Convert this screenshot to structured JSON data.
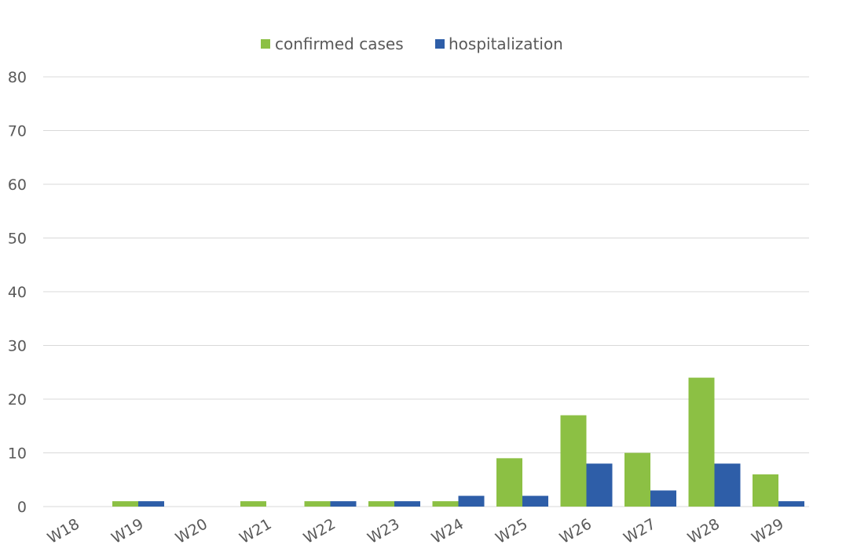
{
  "chart_data": {
    "type": "bar",
    "title": "",
    "xlabel": "",
    "ylabel": "",
    "ylim": [
      0,
      80
    ],
    "yticks": [
      0,
      10,
      20,
      30,
      40,
      50,
      60,
      70,
      80
    ],
    "grid": true,
    "legend_position": "top-center",
    "categories": [
      "W18",
      "W19",
      "W20",
      "W21",
      "W22",
      "W23",
      "W24",
      "W25",
      "W26",
      "W27",
      "W28",
      "W29"
    ],
    "series": [
      {
        "name": "confirmed cases",
        "color": "#8cc044",
        "values": [
          0,
          1,
          0,
          1,
          1,
          1,
          1,
          9,
          17,
          10,
          24,
          6
        ]
      },
      {
        "name": "hospitalization",
        "color": "#2e5ea8",
        "values": [
          0,
          1,
          0,
          0,
          1,
          1,
          2,
          2,
          8,
          3,
          8,
          1
        ]
      }
    ]
  }
}
